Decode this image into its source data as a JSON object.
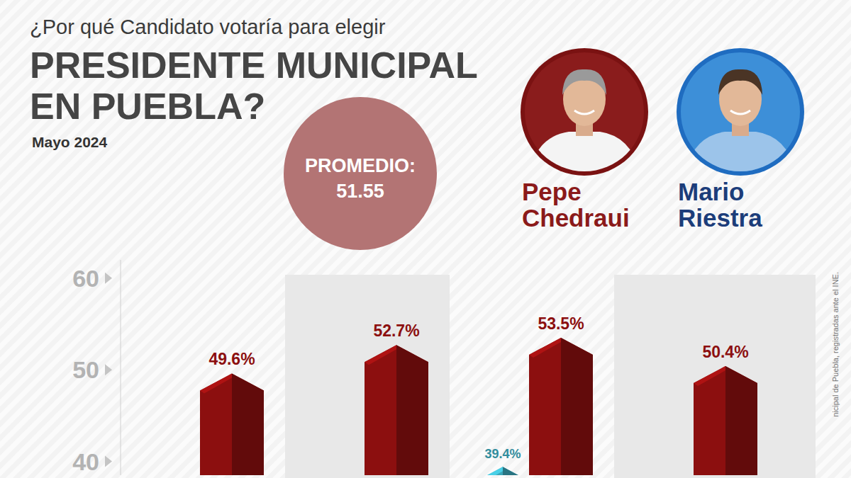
{
  "chart_data": {
    "type": "bar",
    "pretitle": "¿Por qué Candidato votaría para elegir",
    "title": "PRESIDENTE MUNICIPAL EN PUEBLA?",
    "subtitle": "Mayo 2024",
    "average": {
      "label": "PROMEDIO:",
      "value": 51.55
    },
    "categories": [
      null,
      null,
      null,
      null
    ],
    "series": [
      {
        "name": "Pepe Chedraui",
        "color": "#8c0f0f",
        "values": [
          49.6,
          52.7,
          53.5,
          50.4
        ],
        "value_labels": [
          "49.6%",
          "52.7%",
          "53.5%",
          "50.4%"
        ]
      },
      {
        "name": "Mario Riestra",
        "color": "#3aa6b9",
        "values": [
          null,
          null,
          39.4,
          null
        ],
        "value_labels": [
          null,
          null,
          "39.4%",
          null
        ]
      }
    ],
    "ylim": [
      38.5,
      62
    ],
    "yticks": [
      40,
      50,
      60
    ],
    "grid": false,
    "data_labels": true,
    "legend": "top-right",
    "tick_labels": "y",
    "source": "nicipal de Puebla, registradas ante el INE."
  }
}
